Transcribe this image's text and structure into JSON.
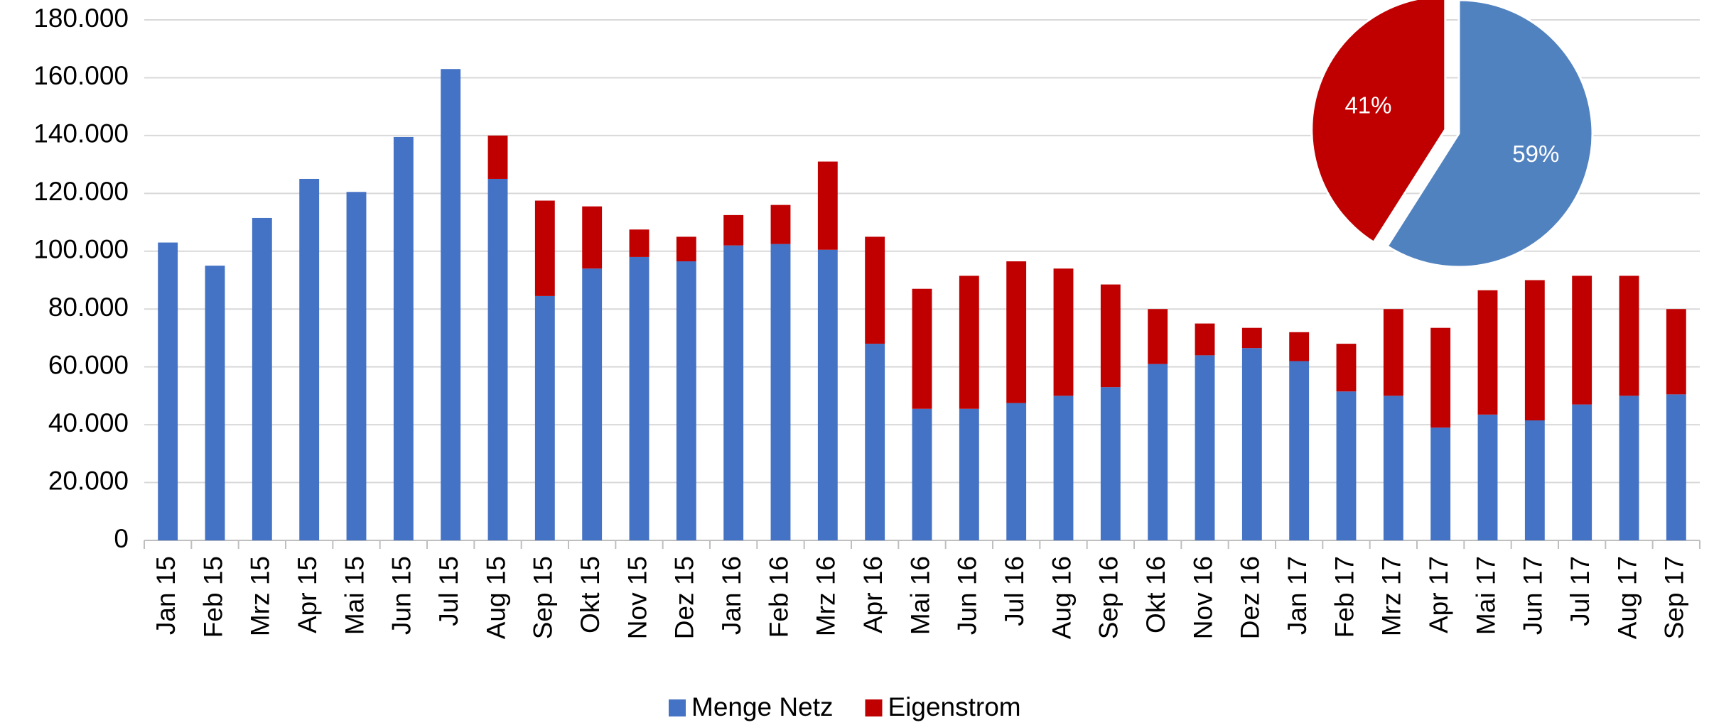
{
  "chart_data": [
    {
      "type": "bar",
      "stacked": true,
      "grid": true,
      "categories": [
        "Jan 15",
        "Feb 15",
        "Mrz 15",
        "Apr 15",
        "Mai 15",
        "Jun 15",
        "Jul 15",
        "Aug 15",
        "Sep 15",
        "Okt 15",
        "Nov 15",
        "Dez 15",
        "Jan 16",
        "Feb 16",
        "Mrz 16",
        "Apr 16",
        "Mai 16",
        "Jun 16",
        "Jul 16",
        "Aug 16",
        "Sep 16",
        "Okt 16",
        "Nov 16",
        "Dez 16",
        "Jan 17",
        "Feb 17",
        "Mrz 17",
        "Apr 17",
        "Mai 17",
        "Jun 17",
        "Jul 17",
        "Aug 17",
        "Sep 17"
      ],
      "series": [
        {
          "name": "Menge Netz",
          "color": "#4472c4",
          "values": [
            103000,
            95000,
            111500,
            125000,
            120500,
            139500,
            163000,
            125000,
            84500,
            94000,
            98000,
            96500,
            102000,
            102500,
            100500,
            68000,
            45500,
            45500,
            47500,
            50000,
            53000,
            61000,
            64000,
            66500,
            62000,
            51500,
            50000,
            39000,
            43500,
            41500,
            47000,
            50000,
            50500
          ]
        },
        {
          "name": "Eigenstrom",
          "color": "#c00000",
          "values": [
            0,
            0,
            0,
            0,
            0,
            0,
            0,
            15000,
            33000,
            21500,
            9500,
            8500,
            10500,
            13500,
            30500,
            37000,
            41500,
            46000,
            49000,
            44000,
            35500,
            19000,
            11000,
            7000,
            10000,
            16500,
            30000,
            34500,
            43000,
            48500,
            44500,
            41500,
            29500
          ]
        }
      ],
      "ylim": [
        0,
        180000
      ],
      "yticks": [
        0,
        {
          "value": 20000,
          "label": "20.000"
        },
        {
          "value": 40000,
          "label": "40.000"
        },
        {
          "value": 60000,
          "label": "60.000"
        },
        {
          "value": 80000,
          "label": "80.000"
        },
        {
          "value": 100000,
          "label": "100.000"
        },
        {
          "value": 120000,
          "label": "120.000"
        },
        {
          "value": 140000,
          "label": "140.000"
        },
        {
          "value": 160000,
          "label": "160.000"
        },
        {
          "value": 180000,
          "label": "180.000"
        }
      ]
    },
    {
      "type": "pie",
      "values": [
        59,
        41
      ],
      "value_labels": [
        "59%",
        "41%"
      ],
      "colors": [
        "#5182c0",
        "#c00000"
      ]
    }
  ]
}
